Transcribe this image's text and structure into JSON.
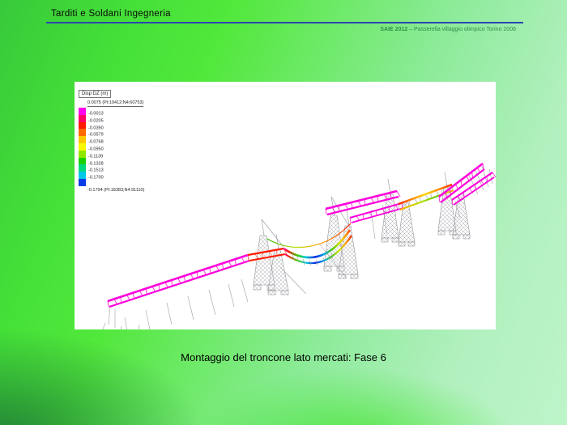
{
  "slide": {
    "title": "Tarditi e Soldani Ingegneria",
    "event_label": "SAIE 2012",
    "event_separator": " – ",
    "event_subtitle": "Passerella villaggio olimpico Torino 2006",
    "caption": "Montaggio del troncone lato mercati: Fase 6",
    "colors": {
      "background_bright_green": "#44e038",
      "background_pale_green": "#b6f3c3",
      "background_dark_green": "#1f7a38",
      "header_underline": "#2b46b0",
      "subtitle_green": "#2f8f4a",
      "panel_background": "#ffffff"
    }
  },
  "fem_panel": {
    "legend": {
      "title": "Disp DZ (m)",
      "max_label": "0.0075 (Pt:10412;N4:60753)",
      "min_label": "-0.1794 (Pt:18383;N4:91110)",
      "bands": [
        {
          "color": "#FF00F0",
          "label": "-0.0013"
        },
        {
          "color": "#FF0066",
          "label": "-0.0205"
        },
        {
          "color": "#FF1A00",
          "label": "-0.0390"
        },
        {
          "color": "#FF6A00",
          "label": "-0.0579"
        },
        {
          "color": "#FFC800",
          "label": "-0.0768"
        },
        {
          "color": "#F8F800",
          "label": "-0.0950"
        },
        {
          "color": "#8FE800",
          "label": "-0.1139"
        },
        {
          "color": "#1BD100",
          "label": "-0.1328"
        },
        {
          "color": "#00D97E",
          "label": "-0.1513"
        },
        {
          "color": "#00C8E8",
          "label": "-0.1700"
        },
        {
          "color": "#0A3BE8",
          "label": ""
        }
      ]
    },
    "model_colors": {
      "undeformed_truss_magenta": "#FF00DC",
      "max_deflection_blue": "#0022E0",
      "support_lattice_grey": "#9A9AA2"
    }
  }
}
